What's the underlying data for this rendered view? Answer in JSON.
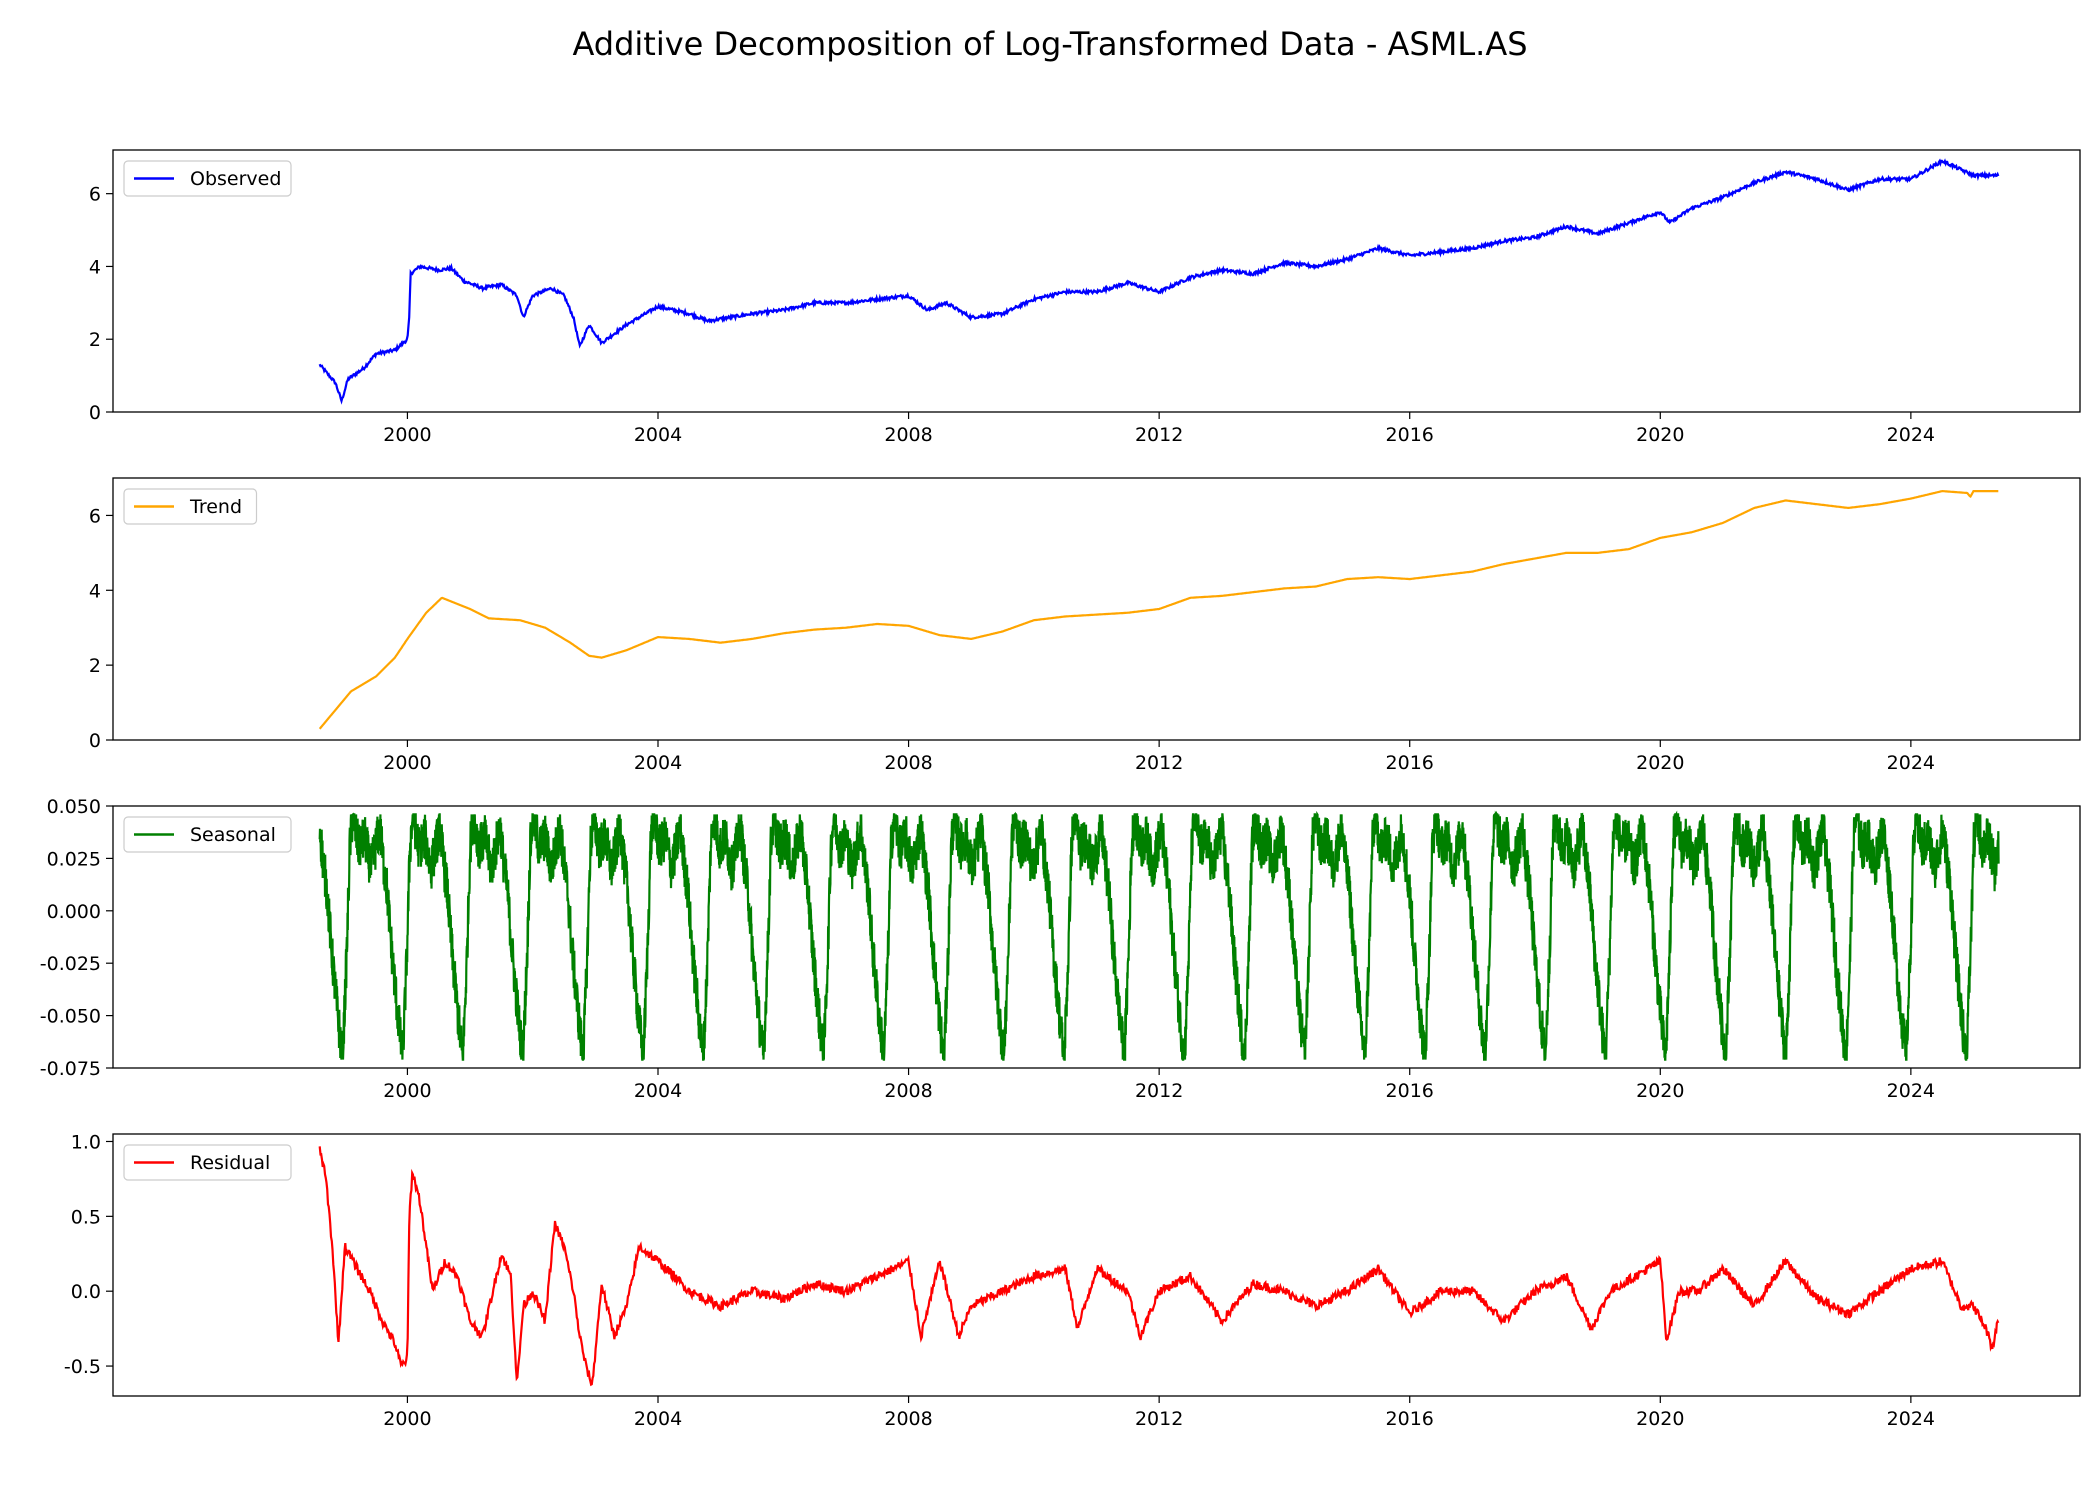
{
  "figure": {
    "title": "Additive Decomposition of Log-Transformed Data - ASML.AS"
  },
  "chart_data": [
    {
      "type": "line",
      "series": [
        {
          "name": "Observed",
          "color": "#0000ff",
          "points": [
            [
              1998.6,
              1.3
            ],
            [
              1998.7,
              1.1
            ],
            [
              1998.85,
              0.8
            ],
            [
              1998.95,
              0.3
            ],
            [
              1999.05,
              0.9
            ],
            [
              1999.3,
              1.2
            ],
            [
              1999.5,
              1.6
            ],
            [
              1999.8,
              1.7
            ],
            [
              2000.0,
              2.0
            ],
            [
              2000.03,
              2.6
            ],
            [
              2000.05,
              3.8
            ],
            [
              2000.2,
              4.0
            ],
            [
              2000.5,
              3.9
            ],
            [
              2000.7,
              3.95
            ],
            [
              2000.9,
              3.6
            ],
            [
              2001.2,
              3.4
            ],
            [
              2001.5,
              3.5
            ],
            [
              2001.75,
              3.2
            ],
            [
              2001.85,
              2.6
            ],
            [
              2002.0,
              3.2
            ],
            [
              2002.3,
              3.4
            ],
            [
              2002.5,
              3.2
            ],
            [
              2002.65,
              2.6
            ],
            [
              2002.75,
              1.8
            ],
            [
              2002.9,
              2.4
            ],
            [
              2003.1,
              1.9
            ],
            [
              2003.5,
              2.4
            ],
            [
              2004.0,
              2.9
            ],
            [
              2004.5,
              2.7
            ],
            [
              2004.8,
              2.5
            ],
            [
              2005.5,
              2.7
            ],
            [
              2006.0,
              2.8
            ],
            [
              2006.5,
              3.0
            ],
            [
              2007.0,
              3.0
            ],
            [
              2007.5,
              3.1
            ],
            [
              2008.0,
              3.2
            ],
            [
              2008.3,
              2.8
            ],
            [
              2008.6,
              3.0
            ],
            [
              2009.0,
              2.6
            ],
            [
              2009.5,
              2.7
            ],
            [
              2010.0,
              3.1
            ],
            [
              2010.5,
              3.3
            ],
            [
              2011.0,
              3.3
            ],
            [
              2011.5,
              3.55
            ],
            [
              2012.0,
              3.3
            ],
            [
              2012.5,
              3.7
            ],
            [
              2013.0,
              3.9
            ],
            [
              2013.5,
              3.8
            ],
            [
              2014.0,
              4.1
            ],
            [
              2014.5,
              4.0
            ],
            [
              2015.0,
              4.2
            ],
            [
              2015.5,
              4.5
            ],
            [
              2016.0,
              4.3
            ],
            [
              2016.5,
              4.4
            ],
            [
              2017.0,
              4.5
            ],
            [
              2017.5,
              4.7
            ],
            [
              2018.0,
              4.8
            ],
            [
              2018.5,
              5.1
            ],
            [
              2019.0,
              4.9
            ],
            [
              2019.5,
              5.2
            ],
            [
              2020.0,
              5.5
            ],
            [
              2020.15,
              5.2
            ],
            [
              2020.5,
              5.6
            ],
            [
              2021.0,
              5.9
            ],
            [
              2021.5,
              6.3
            ],
            [
              2022.0,
              6.6
            ],
            [
              2022.5,
              6.4
            ],
            [
              2023.0,
              6.1
            ],
            [
              2023.5,
              6.4
            ],
            [
              2024.0,
              6.4
            ],
            [
              2024.5,
              6.9
            ],
            [
              2025.0,
              6.5
            ],
            [
              2025.4,
              6.5
            ]
          ]
        }
      ],
      "ylim": [
        0,
        7.2
      ],
      "yticks": [
        0,
        2,
        4,
        6
      ],
      "yticklabels": [
        "0",
        "2",
        "4",
        "6"
      ],
      "xlim": [
        1995.3,
        2026.7
      ],
      "xticks": [
        2000,
        2004,
        2008,
        2012,
        2016,
        2020,
        2024
      ],
      "xticklabels": [
        "2000",
        "2004",
        "2008",
        "2012",
        "2016",
        "2020",
        "2024"
      ],
      "legend": "upper-left"
    },
    {
      "type": "line",
      "series": [
        {
          "name": "Trend",
          "color": "#ffa500",
          "points": [
            [
              1998.6,
              0.3
            ],
            [
              1999.0,
              1.1
            ],
            [
              1999.1,
              1.3
            ],
            [
              1999.5,
              1.7
            ],
            [
              1999.8,
              2.2
            ],
            [
              2000.0,
              2.7
            ],
            [
              2000.3,
              3.4
            ],
            [
              2000.55,
              3.8
            ],
            [
              2001.0,
              3.5
            ],
            [
              2001.3,
              3.25
            ],
            [
              2001.8,
              3.2
            ],
            [
              2002.2,
              3.0
            ],
            [
              2002.6,
              2.6
            ],
            [
              2002.9,
              2.25
            ],
            [
              2003.1,
              2.2
            ],
            [
              2003.5,
              2.4
            ],
            [
              2004.0,
              2.75
            ],
            [
              2004.5,
              2.7
            ],
            [
              2005.0,
              2.6
            ],
            [
              2005.5,
              2.7
            ],
            [
              2006.0,
              2.85
            ],
            [
              2006.5,
              2.95
            ],
            [
              2007.0,
              3.0
            ],
            [
              2007.5,
              3.1
            ],
            [
              2008.0,
              3.05
            ],
            [
              2008.5,
              2.8
            ],
            [
              2009.0,
              2.7
            ],
            [
              2009.5,
              2.9
            ],
            [
              2010.0,
              3.2
            ],
            [
              2010.5,
              3.3
            ],
            [
              2011.0,
              3.35
            ],
            [
              2011.5,
              3.4
            ],
            [
              2012.0,
              3.5
            ],
            [
              2012.5,
              3.8
            ],
            [
              2013.0,
              3.85
            ],
            [
              2013.5,
              3.95
            ],
            [
              2014.0,
              4.05
            ],
            [
              2014.5,
              4.1
            ],
            [
              2015.0,
              4.3
            ],
            [
              2015.5,
              4.35
            ],
            [
              2016.0,
              4.3
            ],
            [
              2016.5,
              4.4
            ],
            [
              2017.0,
              4.5
            ],
            [
              2017.5,
              4.7
            ],
            [
              2018.0,
              4.85
            ],
            [
              2018.5,
              5.0
            ],
            [
              2019.0,
              5.0
            ],
            [
              2019.5,
              5.1
            ],
            [
              2020.0,
              5.4
            ],
            [
              2020.5,
              5.55
            ],
            [
              2021.0,
              5.8
            ],
            [
              2021.5,
              6.2
            ],
            [
              2022.0,
              6.4
            ],
            [
              2022.5,
              6.3
            ],
            [
              2023.0,
              6.2
            ],
            [
              2023.5,
              6.3
            ],
            [
              2024.0,
              6.45
            ],
            [
              2024.5,
              6.65
            ],
            [
              2024.9,
              6.6
            ],
            [
              2024.95,
              6.5
            ],
            [
              2025.0,
              6.65
            ],
            [
              2025.4,
              6.65
            ]
          ]
        }
      ],
      "ylim": [
        0,
        7.0
      ],
      "yticks": [
        0,
        2,
        4,
        6
      ],
      "yticklabels": [
        "0",
        "2",
        "4",
        "6"
      ],
      "xlim": [
        1995.3,
        2026.7
      ],
      "xticks": [
        2000,
        2004,
        2008,
        2012,
        2016,
        2020,
        2024
      ],
      "xticklabels": [
        "2000",
        "2004",
        "2008",
        "2012",
        "2016",
        "2020",
        "2024"
      ],
      "legend": "upper-left"
    },
    {
      "type": "line",
      "series": [
        {
          "name": "Seasonal",
          "color": "#008000",
          "period_years": 0.96,
          "min": -0.071,
          "max": 0.046,
          "start": 1998.6,
          "end": 2025.4,
          "cycle_shape": [
            [
              0.0,
              0.04
            ],
            [
              0.05,
              0.025
            ],
            [
              0.12,
              0.01
            ],
            [
              0.2,
              -0.02
            ],
            [
              0.3,
              -0.05
            ],
            [
              0.38,
              -0.071
            ],
            [
              0.45,
              -0.02
            ],
            [
              0.5,
              0.03
            ],
            [
              0.55,
              0.046
            ],
            [
              0.65,
              0.03
            ],
            [
              0.75,
              0.035
            ],
            [
              0.85,
              0.02
            ],
            [
              1.0,
              0.04
            ]
          ]
        }
      ],
      "ylim": [
        -0.075,
        0.05
      ],
      "yticks": [
        -0.075,
        -0.05,
        -0.025,
        0.0,
        0.025,
        0.05
      ],
      "yticklabels": [
        "-0.075",
        "-0.050",
        "-0.025",
        "0.000",
        "0.025",
        "0.050"
      ],
      "xlim": [
        1995.3,
        2026.7
      ],
      "xticks": [
        2000,
        2004,
        2008,
        2012,
        2016,
        2020,
        2024
      ],
      "xticklabels": [
        "2000",
        "2004",
        "2008",
        "2012",
        "2016",
        "2020",
        "2024"
      ],
      "legend": "upper-left"
    },
    {
      "type": "line",
      "series": [
        {
          "name": "Residual",
          "color": "#ff0000",
          "points": [
            [
              1998.6,
              0.95
            ],
            [
              1998.7,
              0.75
            ],
            [
              1998.8,
              0.3
            ],
            [
              1998.9,
              -0.35
            ],
            [
              1999.0,
              0.3
            ],
            [
              1999.2,
              0.15
            ],
            [
              1999.4,
              0.0
            ],
            [
              1999.6,
              -0.2
            ],
            [
              1999.8,
              -0.35
            ],
            [
              1999.9,
              -0.5
            ],
            [
              2000.0,
              -0.45
            ],
            [
              2000.03,
              0.5
            ],
            [
              2000.08,
              0.8
            ],
            [
              2000.2,
              0.6
            ],
            [
              2000.4,
              0.0
            ],
            [
              2000.6,
              0.2
            ],
            [
              2000.8,
              0.1
            ],
            [
              2001.0,
              -0.2
            ],
            [
              2001.2,
              -0.3
            ],
            [
              2001.5,
              0.25
            ],
            [
              2001.65,
              0.1
            ],
            [
              2001.75,
              -0.62
            ],
            [
              2001.85,
              -0.1
            ],
            [
              2002.0,
              0.0
            ],
            [
              2002.2,
              -0.2
            ],
            [
              2002.35,
              0.45
            ],
            [
              2002.5,
              0.3
            ],
            [
              2002.65,
              0.0
            ],
            [
              2002.75,
              -0.3
            ],
            [
              2002.85,
              -0.5
            ],
            [
              2002.95,
              -0.63
            ],
            [
              2003.1,
              0.05
            ],
            [
              2003.3,
              -0.3
            ],
            [
              2003.5,
              -0.1
            ],
            [
              2003.7,
              0.3
            ],
            [
              2004.0,
              0.2
            ],
            [
              2004.5,
              0.0
            ],
            [
              2005.0,
              -0.1
            ],
            [
              2005.5,
              0.0
            ],
            [
              2006.0,
              -0.05
            ],
            [
              2006.5,
              0.05
            ],
            [
              2007.0,
              0.0
            ],
            [
              2007.5,
              0.1
            ],
            [
              2008.0,
              0.2
            ],
            [
              2008.2,
              -0.3
            ],
            [
              2008.5,
              0.2
            ],
            [
              2008.8,
              -0.3
            ],
            [
              2009.0,
              -0.1
            ],
            [
              2009.5,
              0.0
            ],
            [
              2010.0,
              0.1
            ],
            [
              2010.5,
              0.15
            ],
            [
              2010.7,
              -0.25
            ],
            [
              2011.0,
              0.15
            ],
            [
              2011.5,
              0.0
            ],
            [
              2011.7,
              -0.3
            ],
            [
              2012.0,
              0.0
            ],
            [
              2012.5,
              0.1
            ],
            [
              2013.0,
              -0.2
            ],
            [
              2013.5,
              0.05
            ],
            [
              2014.0,
              0.0
            ],
            [
              2014.5,
              -0.1
            ],
            [
              2015.0,
              0.0
            ],
            [
              2015.5,
              0.15
            ],
            [
              2016.0,
              -0.15
            ],
            [
              2016.5,
              0.0
            ],
            [
              2017.0,
              0.0
            ],
            [
              2017.5,
              -0.2
            ],
            [
              2018.0,
              0.0
            ],
            [
              2018.5,
              0.1
            ],
            [
              2018.9,
              -0.25
            ],
            [
              2019.2,
              0.0
            ],
            [
              2019.6,
              0.1
            ],
            [
              2020.0,
              0.2
            ],
            [
              2020.1,
              -0.33
            ],
            [
              2020.3,
              0.0
            ],
            [
              2020.6,
              0.0
            ],
            [
              2021.0,
              0.15
            ],
            [
              2021.5,
              -0.1
            ],
            [
              2022.0,
              0.2
            ],
            [
              2022.5,
              -0.05
            ],
            [
              2023.0,
              -0.15
            ],
            [
              2023.5,
              0.0
            ],
            [
              2024.0,
              0.15
            ],
            [
              2024.5,
              0.2
            ],
            [
              2024.8,
              -0.1
            ],
            [
              2025.0,
              -0.1
            ],
            [
              2025.2,
              -0.25
            ],
            [
              2025.3,
              -0.38
            ],
            [
              2025.4,
              -0.18
            ]
          ]
        }
      ],
      "ylim": [
        -0.7,
        1.05
      ],
      "yticks": [
        -0.5,
        0.0,
        0.5,
        1.0
      ],
      "yticklabels": [
        "-0.5",
        "0.0",
        "0.5",
        "1.0"
      ],
      "xlim": [
        1995.3,
        2026.7
      ],
      "xticks": [
        2000,
        2004,
        2008,
        2012,
        2016,
        2020,
        2024
      ],
      "xticklabels": [
        "2000",
        "2004",
        "2008",
        "2012",
        "2016",
        "2020",
        "2024"
      ],
      "legend": "upper-left"
    }
  ]
}
